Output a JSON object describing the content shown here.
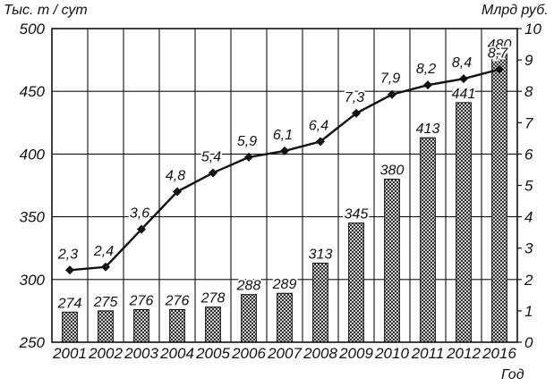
{
  "chart_data": {
    "type": "bar+line",
    "categories": [
      "2001",
      "2002",
      "2003",
      "2004",
      "2005",
      "2006",
      "2007",
      "2008",
      "2009",
      "2010",
      "2011",
      "2012",
      "2016"
    ],
    "bar_series": {
      "axis": "left",
      "values": [
        274,
        275,
        276,
        276,
        278,
        288,
        289,
        313,
        345,
        380,
        413,
        441,
        480
      ],
      "labels": [
        "274",
        "275",
        "276",
        "276",
        "278",
        "288",
        "289",
        "313",
        "345",
        "380",
        "413",
        "441",
        "480"
      ]
    },
    "line_series": {
      "axis": "right",
      "values": [
        2.3,
        2.4,
        3.6,
        4.8,
        5.4,
        5.9,
        6.1,
        6.4,
        7.3,
        7.9,
        8.2,
        8.4,
        8.7
      ],
      "labels": [
        "2,3",
        "2,4",
        "3,6",
        "4,8",
        "5,4",
        "5,9",
        "6,1",
        "6,4",
        "7,3",
        "7,9",
        "8,2",
        "8,4",
        "8,7"
      ]
    },
    "left_axis": {
      "label": "Тыс. т / сут",
      "ylim": [
        250,
        500
      ],
      "ticks": [
        "250",
        "300",
        "350",
        "400",
        "450",
        "500"
      ]
    },
    "right_axis": {
      "label": "Млрд руб.",
      "ylim": [
        0,
        10
      ],
      "ticks": [
        "0",
        "1",
        "2",
        "3",
        "4",
        "5",
        "6",
        "7",
        "8",
        "9",
        "10"
      ]
    },
    "xlabel": "Год",
    "grid": true,
    "colors": {
      "ink": "#111111",
      "bar_fill": "#ffffff"
    }
  }
}
